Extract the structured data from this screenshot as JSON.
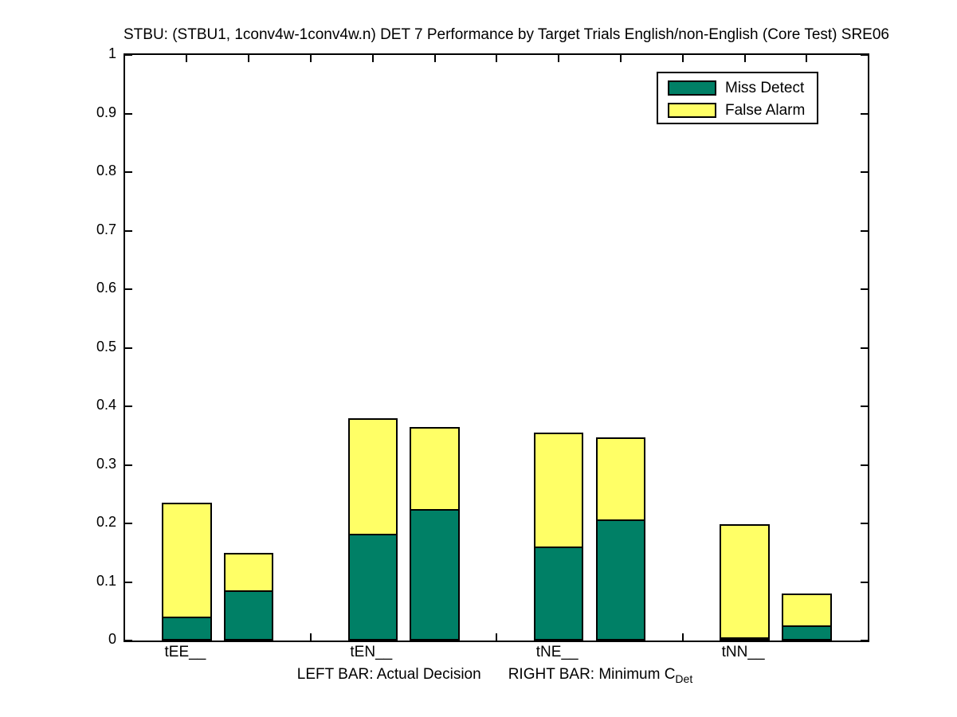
{
  "title": "STBU: (STBU1, 1conv4w-1conv4w.n) DET 7 Performance by Target Trials English/non-English (Core Test) SRE06",
  "legend": {
    "items": [
      {
        "label": "Miss Detect",
        "color": "#008066"
      },
      {
        "label": "False Alarm",
        "color": "#ffff66"
      }
    ]
  },
  "axis": {
    "caption_left": "LEFT BAR: Actual Decision",
    "caption_right": "RIGHT BAR: Minimum C",
    "caption_subscript": "Det"
  },
  "chart_data": {
    "type": "bar",
    "stacked": true,
    "title": "STBU: (STBU1, 1conv4w-1conv4w.n) DET 7 Performance by Target Trials English/non-English (Core Test) SRE06",
    "xlabel": "LEFT BAR: Actual Decision    RIGHT BAR: Minimum C_Det",
    "ylabel": "",
    "ylim": [
      0,
      1
    ],
    "yticks": [
      0,
      0.1,
      0.2,
      0.3,
      0.4,
      0.5,
      0.6,
      0.7,
      0.8,
      0.9,
      1
    ],
    "ytick_labels": [
      "0",
      "0.1",
      "0.2",
      "0.3",
      "0.4",
      "0.5",
      "0.6",
      "0.7",
      "0.8",
      "0.9",
      "1"
    ],
    "grid": false,
    "legend_position": "top-right",
    "series_names": [
      "Miss Detect",
      "False Alarm"
    ],
    "bar_meanings": [
      "Actual Decision",
      "Minimum C_Det"
    ],
    "colors": {
      "miss_detect": "#008066",
      "false_alarm": "#ffff66"
    },
    "categories": [
      "tEE__",
      "tEN__",
      "tNE__",
      "tNN__"
    ],
    "groups": [
      {
        "category": "tEE__",
        "bars": [
          {
            "name": "Actual Decision",
            "miss_detect": 0.041,
            "false_alarm": 0.195,
            "total": 0.236
          },
          {
            "name": "Minimum C_Det",
            "miss_detect": 0.086,
            "false_alarm": 0.064,
            "total": 0.15
          }
        ]
      },
      {
        "category": "tEN__",
        "bars": [
          {
            "name": "Actual Decision",
            "miss_detect": 0.182,
            "false_alarm": 0.197,
            "total": 0.379
          },
          {
            "name": "Minimum C_Det",
            "miss_detect": 0.225,
            "false_alarm": 0.139,
            "total": 0.364
          }
        ]
      },
      {
        "category": "tNE__",
        "bars": [
          {
            "name": "Actual Decision",
            "miss_detect": 0.16,
            "false_alarm": 0.195,
            "total": 0.355
          },
          {
            "name": "Minimum C_Det",
            "miss_detect": 0.207,
            "false_alarm": 0.14,
            "total": 0.347
          }
        ]
      },
      {
        "category": "tNN__",
        "bars": [
          {
            "name": "Actual Decision",
            "miss_detect": 0.004,
            "false_alarm": 0.195,
            "total": 0.199
          },
          {
            "name": "Minimum C_Det",
            "miss_detect": 0.026,
            "false_alarm": 0.054,
            "total": 0.08
          }
        ]
      }
    ]
  }
}
